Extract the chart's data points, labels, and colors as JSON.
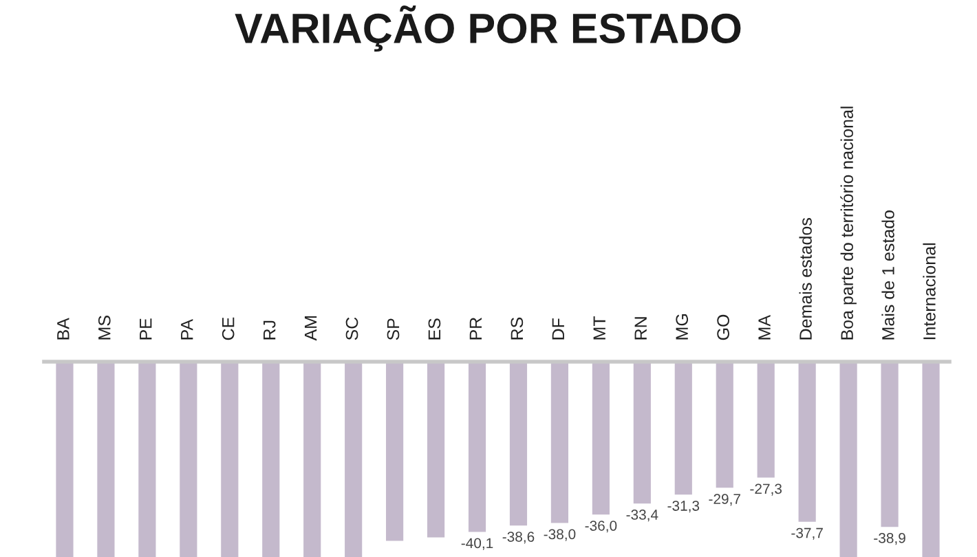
{
  "chart_data": {
    "type": "bar",
    "title": "VARIAÇÃO POR ESTADO",
    "categories": [
      "BA",
      "MS",
      "PE",
      "PA",
      "CE",
      "RJ",
      "AM",
      "SC",
      "SP",
      "ES",
      "PR",
      "RS",
      "DF",
      "MT",
      "RN",
      "MG",
      "GO",
      "MA",
      "Demais estados",
      "Boa parte do território nacional",
      "Mais de 1 estado",
      "Internacional"
    ],
    "values": [
      -46,
      -46,
      -46,
      -46,
      -46,
      -46,
      -46,
      -46,
      -42.2,
      -41.4,
      -40.1,
      -38.6,
      -38.0,
      -36.0,
      -33.4,
      -31.3,
      -29.7,
      -27.3,
      -37.7,
      -46,
      -38.9,
      -46
    ],
    "value_labels": [
      null,
      null,
      null,
      null,
      null,
      null,
      null,
      null,
      null,
      null,
      "-40,1",
      "-38,6",
      "-38,0",
      "-36,0",
      "-33,4",
      "-31,3",
      "-29,7",
      "-27,3",
      "-37,7",
      null,
      "-38,9",
      null
    ],
    "color": "#c4b9cc",
    "ylim": [
      -46,
      0
    ],
    "tick_labels": "x"
  }
}
